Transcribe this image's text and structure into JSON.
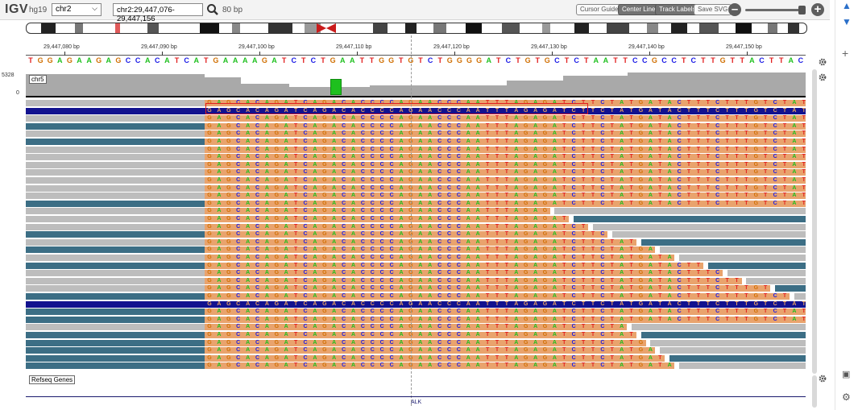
{
  "toolbar": {
    "app_name": "IGV",
    "genome": "hg19",
    "chromosome": "chr2",
    "locus": "chr2:29,447,076-29,447,156",
    "window": "80 bp",
    "buttons": [
      "Cursor Guide",
      "Center Line",
      "Track Labels",
      "Save SVG"
    ],
    "zoom_out": "–",
    "zoom_in": "+"
  },
  "ruler": {
    "ticks": [
      "29,447,080 bp",
      "29,447,090 bp",
      "29,447,100 bp",
      "29,447,110 bp",
      "29,447,120 bp",
      "29,447,130 bp",
      "29,447,140 bp",
      "29,447,150 bp"
    ]
  },
  "sequence": "TGGAGAAGAGCCACATCATGAAAAGATCTCTGAATTGGTGTCTGGGGATCTGTGCTCTAATTCCGCCTCTTGTTACTTAC",
  "coverage": {
    "range_max": "5328",
    "range_min": "0",
    "track_name": "chr5"
  },
  "alignment_mismatch_seq": "GAGCACAGATCAGACACCCCAGAACCCAATTTAGAGATCTTCTATGATACTTTCTTTGTCTATGG",
  "refseq": {
    "track_name": "Refseq Genes",
    "gene": "ALK"
  },
  "colors": {
    "A": "#1ec01e",
    "C": "#1a1ae6",
    "G": "#d17105",
    "T": "#e21f1f",
    "read_gray": "#bdbdbd",
    "read_teal": "#3c6e85",
    "read_navy": "#12128f",
    "softclip_bg": "#e9a36d"
  }
}
